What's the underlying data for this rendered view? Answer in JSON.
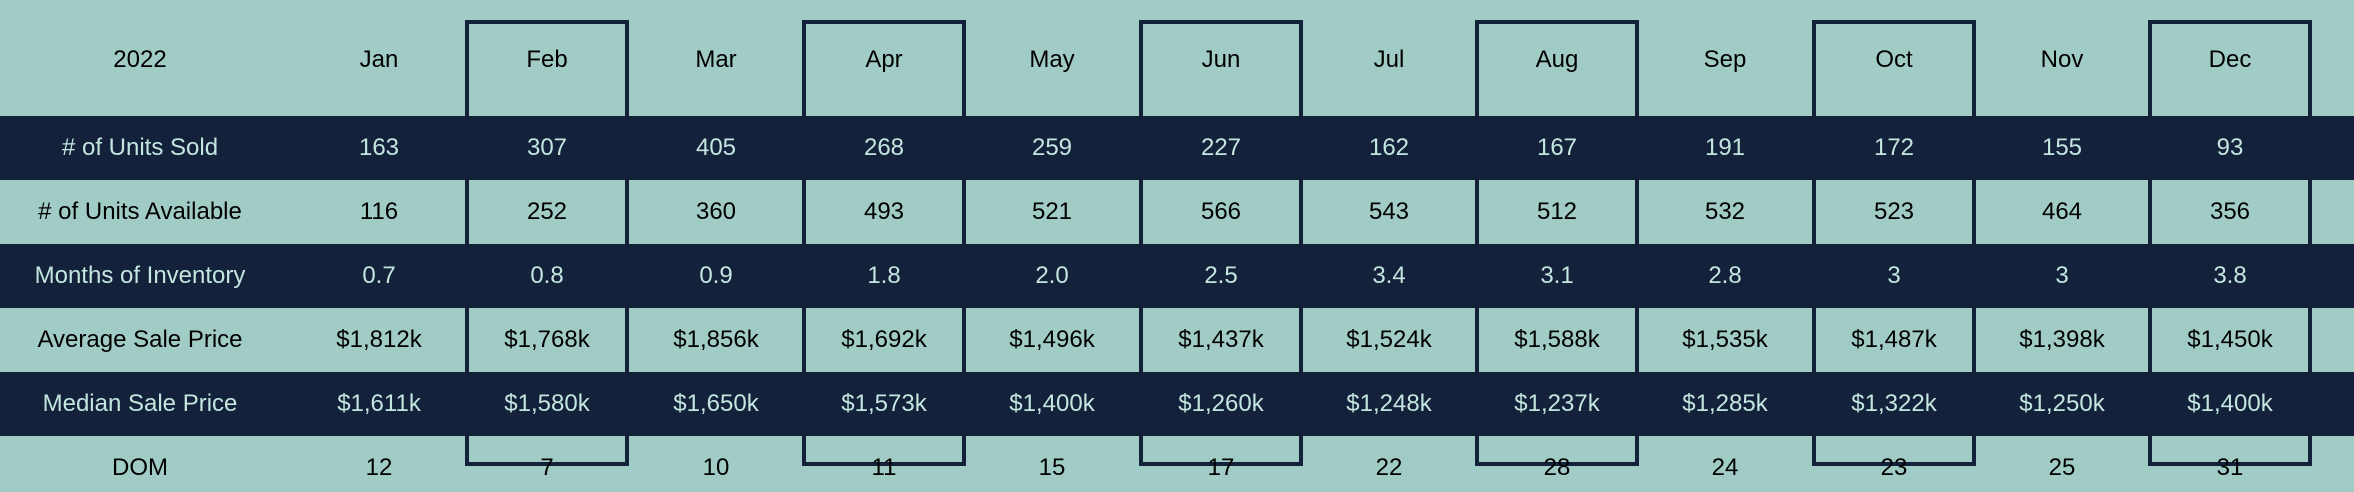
{
  "chart_data": {
    "type": "table",
    "title": "",
    "year": "2022",
    "months": [
      "Jan",
      "Feb",
      "Mar",
      "Apr",
      "May",
      "Jun",
      "Jul",
      "Aug",
      "Sep",
      "Oct",
      "Nov",
      "Dec"
    ],
    "rows": [
      {
        "label": "# of Units Sold",
        "values": [
          "163",
          "307",
          "405",
          "268",
          "259",
          "227",
          "162",
          "167",
          "191",
          "172",
          "155",
          "93"
        ]
      },
      {
        "label": "# of Units Available",
        "values": [
          "116",
          "252",
          "360",
          "493",
          "521",
          "566",
          "543",
          "512",
          "532",
          "523",
          "464",
          "356"
        ]
      },
      {
        "label": "Months of Inventory",
        "values": [
          "0.7",
          "0.8",
          "0.9",
          "1.8",
          "2.0",
          "2.5",
          "3.4",
          "3.1",
          "2.8",
          "3",
          "3",
          "3.8"
        ]
      },
      {
        "label": "Average Sale Price",
        "values": [
          "$1,812k",
          "$1,768k",
          "$1,856k",
          "$1,692k",
          "$1,496k",
          "$1,437k",
          "$1,524k",
          "$1,588k",
          "$1,535k",
          "$1,487k",
          "$1,398k",
          "$1,450k"
        ]
      },
      {
        "label": "Median Sale Price",
        "values": [
          "$1,611k",
          "$1,580k",
          "$1,650k",
          "$1,573k",
          "$1,400k",
          "$1,260k",
          "$1,248k",
          "$1,237k",
          "$1,285k",
          "$1,322k",
          "$1,250k",
          "$1,400k"
        ]
      },
      {
        "label": "DOM",
        "values": [
          "12",
          "7",
          "10",
          "11",
          "15",
          "17",
          "22",
          "28",
          "24",
          "23",
          "25",
          "31"
        ]
      }
    ]
  },
  "colors": {
    "background": "#a1ccc6",
    "band": "#14213a",
    "band_text": "#c3e6e0",
    "text": "#000000",
    "outline": "#14213a"
  }
}
